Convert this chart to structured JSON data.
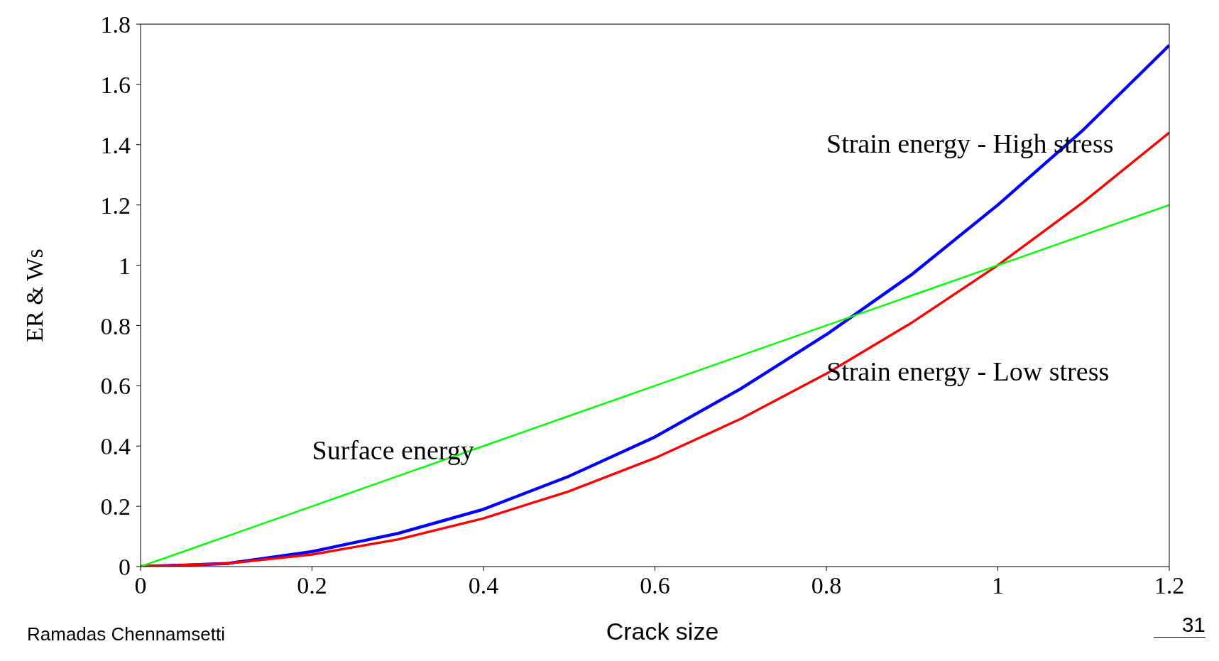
{
  "chart_data": {
    "type": "line",
    "xlabel": "Crack size",
    "ylabel": "ER & Ws",
    "x": [
      0,
      0.1,
      0.2,
      0.3,
      0.4,
      0.5,
      0.6,
      0.7,
      0.8,
      0.9,
      1,
      1.1,
      1.2
    ],
    "series": [
      {
        "name": "Strain energy - High stress",
        "color": "#0000ff",
        "values": [
          0,
          0.01,
          0.05,
          0.11,
          0.19,
          0.3,
          0.43,
          0.59,
          0.77,
          0.97,
          1.2,
          1.45,
          1.73
        ]
      },
      {
        "name": "Strain energy - Low stress",
        "color": "#ff0000",
        "values": [
          0,
          0.01,
          0.04,
          0.09,
          0.16,
          0.25,
          0.36,
          0.49,
          0.64,
          0.81,
          1,
          1.21,
          1.44
        ]
      },
      {
        "name": "Surface energy",
        "color": "#00ff00",
        "values": [
          0,
          0.1,
          0.2,
          0.3,
          0.4,
          0.5,
          0.6,
          0.7,
          0.8,
          0.9,
          1,
          1.1,
          1.2
        ]
      }
    ],
    "xlim": [
      0,
      1.2
    ],
    "xticks": [
      0,
      0.2,
      0.4,
      0.6,
      0.8,
      1,
      1.2
    ],
    "ylim": [
      0,
      1.8
    ],
    "yticks": [
      0,
      0.2,
      0.4,
      0.6,
      0.8,
      1,
      1.2,
      1.4,
      1.6,
      1.8
    ],
    "grid": false,
    "legend": false,
    "marker": "none",
    "line_style": "solid",
    "annotations": [
      "Ramadas Chennamsetti",
      "31"
    ]
  }
}
